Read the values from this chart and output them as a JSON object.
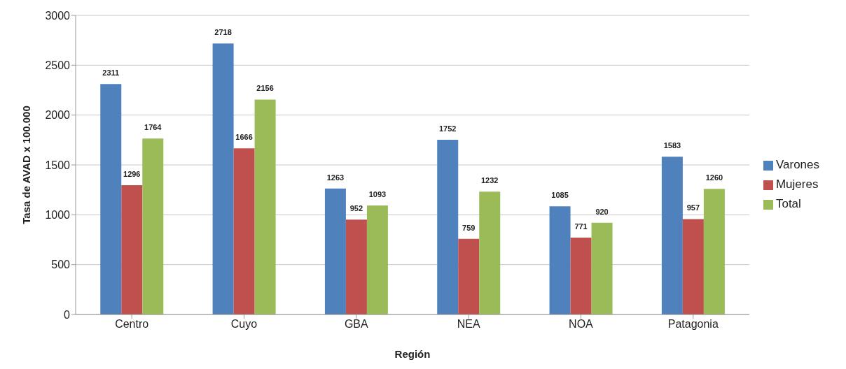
{
  "chart_data": {
    "type": "bar",
    "xlabel": "Región",
    "ylabel": "Tasa de AVAD x 100.000",
    "categories": [
      "Centro",
      "Cuyo",
      "GBA",
      "NEA",
      "NOA",
      "Patagonia"
    ],
    "series": [
      {
        "name": "Varones",
        "color": "#4f81bd",
        "values": [
          2311,
          2718,
          1263,
          1752,
          1085,
          1583
        ]
      },
      {
        "name": "Mujeres",
        "color": "#c0504d",
        "values": [
          1296,
          1666,
          952,
          759,
          771,
          957
        ]
      },
      {
        "name": "Total",
        "color": "#9bbb59",
        "values": [
          1764,
          2156,
          1093,
          1232,
          920,
          1260
        ]
      }
    ],
    "ylim": [
      0,
      3000
    ],
    "yticks": [
      0,
      500,
      1000,
      1500,
      2000,
      2500,
      3000
    ],
    "grid": "y",
    "legend": "right",
    "data_labels": true
  }
}
